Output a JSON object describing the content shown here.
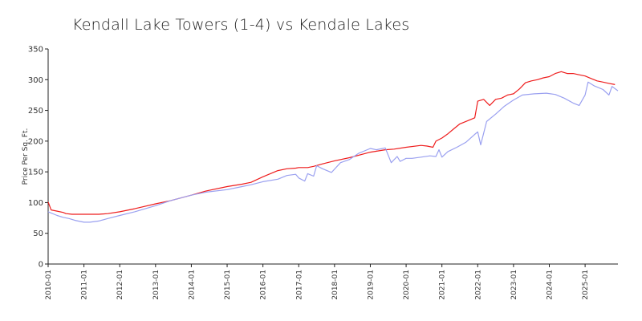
{
  "chart_data": {
    "type": "line",
    "title": "Kendall Lake Towers (1-4) vs Kendale Lakes",
    "xlabel": "",
    "ylabel": "Price Per Sq. Ft.",
    "ylim": [
      0,
      350
    ],
    "yticks": [
      0,
      50,
      100,
      150,
      200,
      250,
      300,
      350
    ],
    "xlim": [
      "2010-01",
      "2025-12"
    ],
    "xticks": [
      "2010-01",
      "2011-01",
      "2012-01",
      "2013-01",
      "2014-01",
      "2015-01",
      "2016-01",
      "2017-01",
      "2018-01",
      "2019-01",
      "2020-01",
      "2021-01",
      "2022-01",
      "2023-01",
      "2024-01",
      "2025-01"
    ],
    "grid": false,
    "legend": "none",
    "series": [
      {
        "color": "#ee1c1c",
        "points": [
          [
            "2010-01",
            101
          ],
          [
            "2010-02",
            88
          ],
          [
            "2010-04",
            86
          ],
          [
            "2010-06",
            84
          ],
          [
            "2010-07",
            82
          ],
          [
            "2010-09",
            81
          ],
          [
            "2011-01",
            81
          ],
          [
            "2011-06",
            81
          ],
          [
            "2011-09",
            82
          ],
          [
            "2012-01",
            85
          ],
          [
            "2012-06",
            90
          ],
          [
            "2013-01",
            98
          ],
          [
            "2013-06",
            103
          ],
          [
            "2014-01",
            112
          ],
          [
            "2014-06",
            119
          ],
          [
            "2015-01",
            126
          ],
          [
            "2015-06",
            130
          ],
          [
            "2015-09",
            133
          ],
          [
            "2016-01",
            142
          ],
          [
            "2016-06",
            152
          ],
          [
            "2016-09",
            155
          ],
          [
            "2016-12",
            156
          ],
          [
            "2017-01",
            157
          ],
          [
            "2017-04",
            157
          ],
          [
            "2017-06",
            159
          ],
          [
            "2017-09",
            163
          ],
          [
            "2018-01",
            168
          ],
          [
            "2018-06",
            173
          ],
          [
            "2019-01",
            182
          ],
          [
            "2019-06",
            186
          ],
          [
            "2019-09",
            187
          ],
          [
            "2020-01",
            190
          ],
          [
            "2020-06",
            193
          ],
          [
            "2020-08",
            192
          ],
          [
            "2020-10",
            190
          ],
          [
            "2020-11",
            200
          ],
          [
            "2021-01",
            205
          ],
          [
            "2021-03",
            212
          ],
          [
            "2021-05",
            220
          ],
          [
            "2021-07",
            228
          ],
          [
            "2021-09",
            232
          ],
          [
            "2021-12",
            238
          ],
          [
            "2022-01",
            265
          ],
          [
            "2022-03",
            268
          ],
          [
            "2022-05",
            258
          ],
          [
            "2022-07",
            268
          ],
          [
            "2022-09",
            270
          ],
          [
            "2022-11",
            275
          ],
          [
            "2023-01",
            277
          ],
          [
            "2023-03",
            285
          ],
          [
            "2023-05",
            295
          ],
          [
            "2023-07",
            298
          ],
          [
            "2023-09",
            300
          ],
          [
            "2023-11",
            303
          ],
          [
            "2024-01",
            305
          ],
          [
            "2024-03",
            310
          ],
          [
            "2024-05",
            313
          ],
          [
            "2024-07",
            310
          ],
          [
            "2024-09",
            310
          ],
          [
            "2024-11",
            308
          ],
          [
            "2025-01",
            306
          ],
          [
            "2025-03",
            302
          ],
          [
            "2025-05",
            298
          ],
          [
            "2025-07",
            296
          ],
          [
            "2025-09",
            294
          ],
          [
            "2025-11",
            292
          ]
        ]
      },
      {
        "color": "#9aa0f0",
        "points": [
          [
            "2010-01",
            85
          ],
          [
            "2010-04",
            79
          ],
          [
            "2010-06",
            76
          ],
          [
            "2010-08",
            74
          ],
          [
            "2010-10",
            71
          ],
          [
            "2011-01",
            68
          ],
          [
            "2011-03",
            68
          ],
          [
            "2011-06",
            70
          ],
          [
            "2011-09",
            74
          ],
          [
            "2012-01",
            79
          ],
          [
            "2012-06",
            85
          ],
          [
            "2013-01",
            95
          ],
          [
            "2013-06",
            103
          ],
          [
            "2014-01",
            112
          ],
          [
            "2014-06",
            117
          ],
          [
            "2015-01",
            121
          ],
          [
            "2015-06",
            126
          ],
          [
            "2015-09",
            129
          ],
          [
            "2016-01",
            134
          ],
          [
            "2016-06",
            138
          ],
          [
            "2016-09",
            144
          ],
          [
            "2016-12",
            146
          ],
          [
            "2017-01",
            140
          ],
          [
            "2017-03",
            135
          ],
          [
            "2017-04",
            147
          ],
          [
            "2017-06",
            143
          ],
          [
            "2017-07",
            160
          ],
          [
            "2017-09",
            155
          ],
          [
            "2017-12",
            149
          ],
          [
            "2018-03",
            165
          ],
          [
            "2018-06",
            170
          ],
          [
            "2018-09",
            180
          ],
          [
            "2019-01",
            188
          ],
          [
            "2019-03",
            186
          ],
          [
            "2019-06",
            189
          ],
          [
            "2019-08",
            165
          ],
          [
            "2019-10",
            175
          ],
          [
            "2019-11",
            167
          ],
          [
            "2020-01",
            172
          ],
          [
            "2020-03",
            172
          ],
          [
            "2020-06",
            174
          ],
          [
            "2020-09",
            176
          ],
          [
            "2020-11",
            175
          ],
          [
            "2020-12",
            186
          ],
          [
            "2021-01",
            174
          ],
          [
            "2021-03",
            183
          ],
          [
            "2021-06",
            190
          ],
          [
            "2021-09",
            198
          ],
          [
            "2021-12",
            211
          ],
          [
            "2022-01",
            215
          ],
          [
            "2022-02",
            194
          ],
          [
            "2022-04",
            232
          ],
          [
            "2022-07",
            244
          ],
          [
            "2022-10",
            257
          ],
          [
            "2023-01",
            267
          ],
          [
            "2023-04",
            275
          ],
          [
            "2023-08",
            277
          ],
          [
            "2023-12",
            278
          ],
          [
            "2024-03",
            276
          ],
          [
            "2024-06",
            270
          ],
          [
            "2024-09",
            262
          ],
          [
            "2024-11",
            258
          ],
          [
            "2025-01",
            275
          ],
          [
            "2025-02",
            296
          ],
          [
            "2025-04",
            290
          ],
          [
            "2025-07",
            284
          ],
          [
            "2025-09",
            275
          ],
          [
            "2025-10",
            289
          ],
          [
            "2025-12",
            282
          ]
        ]
      }
    ]
  }
}
